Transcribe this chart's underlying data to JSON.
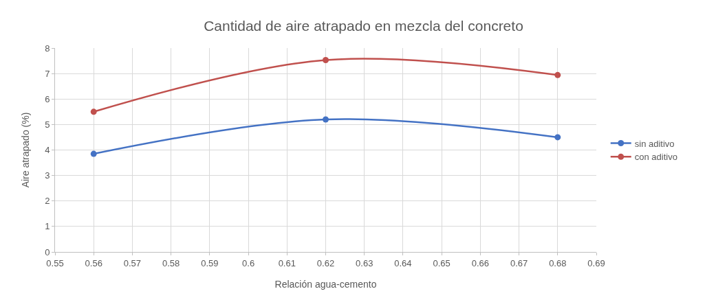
{
  "chart_data": {
    "type": "line",
    "title": "Cantidad de aire atrapado en mezcla del concreto",
    "xlabel": "Relación agua-cemento",
    "ylabel": "Aire atrapado (%)",
    "x": [
      0.56,
      0.62,
      0.68
    ],
    "series": [
      {
        "name": "sin aditivo",
        "color": "#4472c4",
        "values": [
          3.85,
          5.2,
          4.5
        ]
      },
      {
        "name": "con aditivo",
        "color": "#c0504d",
        "values": [
          5.5,
          7.53,
          6.94
        ]
      }
    ],
    "xlim": [
      0.55,
      0.69
    ],
    "xticks": [
      0.55,
      0.56,
      0.57,
      0.58,
      0.59,
      0.6,
      0.61,
      0.62,
      0.63,
      0.64,
      0.65,
      0.66,
      0.67,
      0.68,
      0.69
    ],
    "ylim": [
      0,
      8
    ],
    "yticks": [
      0,
      1,
      2,
      3,
      4,
      5,
      6,
      7,
      8
    ],
    "grid": true,
    "legend": "right",
    "marker": "circle",
    "line_style": "solid"
  }
}
